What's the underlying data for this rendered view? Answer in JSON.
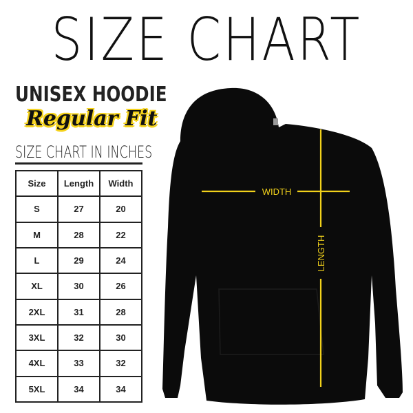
{
  "title": "SIZE CHART",
  "product": "UNISEX HOODIE",
  "fit": "Regular Fit",
  "units_caption": "SIZE CHART IN INCHES",
  "table": {
    "headers": [
      "Size",
      "Length",
      "Width"
    ],
    "rows": [
      [
        "S",
        "27",
        "20"
      ],
      [
        "M",
        "28",
        "22"
      ],
      [
        "L",
        "29",
        "24"
      ],
      [
        "XL",
        "30",
        "26"
      ],
      [
        "2XL",
        "31",
        "28"
      ],
      [
        "3XL",
        "32",
        "30"
      ],
      [
        "4XL",
        "33",
        "32"
      ],
      [
        "5XL",
        "34",
        "34"
      ]
    ]
  },
  "diagram": {
    "width_label": "WIDTH",
    "length_label": "LENGTH",
    "line_color": "#f2d21b",
    "garment_color": "#0b0b0b"
  }
}
